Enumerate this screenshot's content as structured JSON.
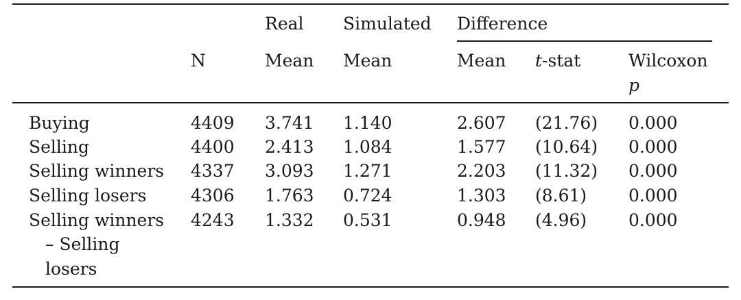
{
  "header": {
    "top": {
      "real": "Real",
      "simulated": "Simulated",
      "difference": "Difference"
    },
    "bottom": {
      "n": "N",
      "real_mean": "Mean",
      "sim_mean": "Mean",
      "diff_mean": "Mean",
      "tstat_italic": "t",
      "tstat_rest": "-stat",
      "wilcoxon": "Wilcoxon",
      "wilcoxon_p": "p"
    }
  },
  "rows": [
    {
      "label": "Buying",
      "n": "4409",
      "real": "3.741",
      "sim": "1.140",
      "diff": "2.607",
      "t": "(21.76)",
      "w": "0.000"
    },
    {
      "label": "Selling",
      "n": "4400",
      "real": "2.413",
      "sim": "1.084",
      "diff": "1.577",
      "t": "(10.64)",
      "w": "0.000"
    },
    {
      "label": "Selling winners",
      "n": "4337",
      "real": "3.093",
      "sim": "1.271",
      "diff": "2.203",
      "t": "(11.32)",
      "w": "0.000"
    },
    {
      "label": "Selling losers",
      "n": "4306",
      "real": "1.763",
      "sim": "0.724",
      "diff": "1.303",
      "t": "(8.61)",
      "w": "0.000"
    },
    {
      "label": "Selling winners",
      "label_line2": "– Selling",
      "label_line3": "losers",
      "n": "4243",
      "real": "1.332",
      "sim": "0.531",
      "diff": "0.948",
      "t": "(4.96)",
      "w": "0.000"
    }
  ]
}
